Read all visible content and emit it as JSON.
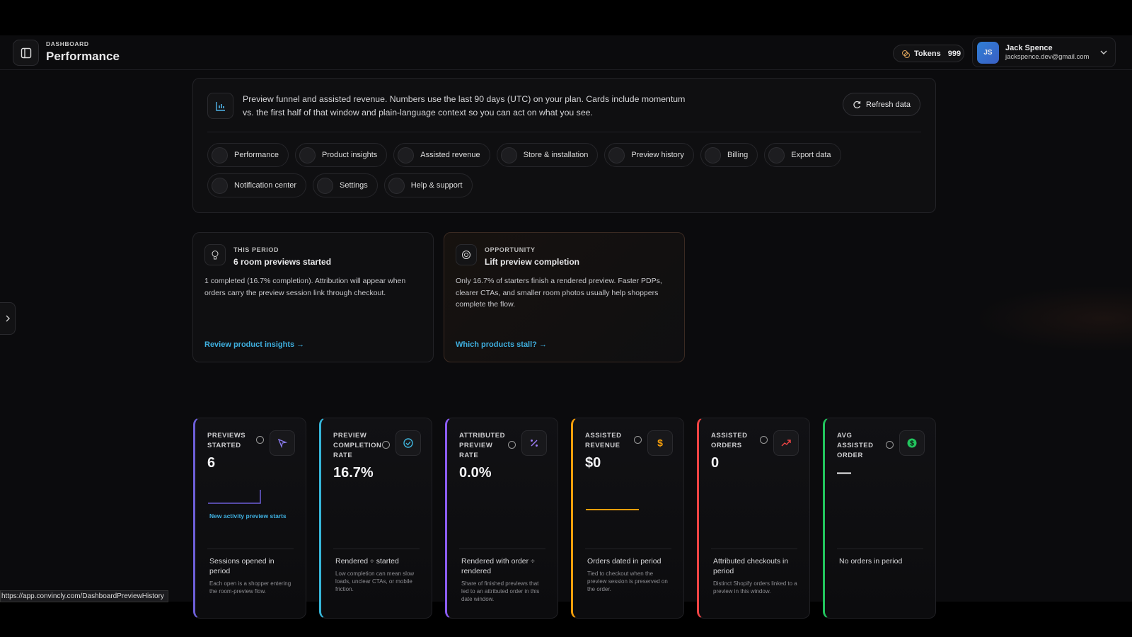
{
  "header": {
    "section": "DASHBOARD",
    "title": "Performance",
    "tokens_label": "Tokens",
    "tokens_value": "999",
    "user": {
      "initials": "JS",
      "name": "Jack Spence",
      "email": "jackspence.dev@gmail.com"
    }
  },
  "intro": {
    "text": "Preview funnel and assisted revenue. Numbers use the last 90 days (UTC) on your plan. Cards include momentum vs. the first half of that window and plain-language context so you can act on what you see.",
    "refresh": "Refresh data"
  },
  "nav": [
    "Performance",
    "Product insights",
    "Assisted revenue",
    "Store & installation",
    "Preview history",
    "Billing",
    "Export data",
    "Notification center",
    "Settings",
    "Help & support"
  ],
  "insights": [
    {
      "eyebrow": "THIS PERIOD",
      "title": "6 room previews started",
      "body": "1 completed (16.7% completion). Attribution will appear when orders carry the preview session link through checkout.",
      "link": "Review product insights →"
    },
    {
      "eyebrow": "OPPORTUNITY",
      "title": "Lift preview completion",
      "body": "Only 16.7% of starters finish a rendered preview. Faster PDPs, clearer CTAs, and smaller room photos usually help shoppers complete the flow.",
      "link": "Which products stall? →"
    }
  ],
  "metrics": [
    {
      "label": "PREVIEWS STARTED",
      "value": "6",
      "note": "New activity preview starts",
      "caption": "Sessions opened in period",
      "detail": "Each open is a shopper entering the room-preview flow.",
      "color": "#6d5fd8"
    },
    {
      "label": "PREVIEW COMPLETION RATE",
      "value": "16.7%",
      "caption": "Rendered ÷ started",
      "detail": "Low completion can mean slow loads, unclear CTAs, or mobile friction.",
      "color": "#36b5d8"
    },
    {
      "label": "ATTRIBUTED PREVIEW RATE",
      "value": "0.0%",
      "caption": "Rendered with order ÷ rendered",
      "detail": "Share of finished previews that led to an attributed order in this date window.",
      "color": "#8b5cf6"
    },
    {
      "label": "ASSISTED REVENUE",
      "value": "$0",
      "caption": "Orders dated in period",
      "detail": "Tied to checkout when the preview session is preserved on the order.",
      "color": "#f59e0b"
    },
    {
      "label": "ASSISTED ORDERS",
      "value": "0",
      "caption": "Attributed checkouts in period",
      "detail": "Distinct Shopify orders linked to a preview in this window.",
      "color": "#ef4444"
    },
    {
      "label": "AVG ASSISTED ORDER",
      "value": "—",
      "caption": "No orders in period",
      "color": "#22c55e"
    }
  ],
  "status_url": "https://app.convincly.com/DashboardPreviewHistory"
}
